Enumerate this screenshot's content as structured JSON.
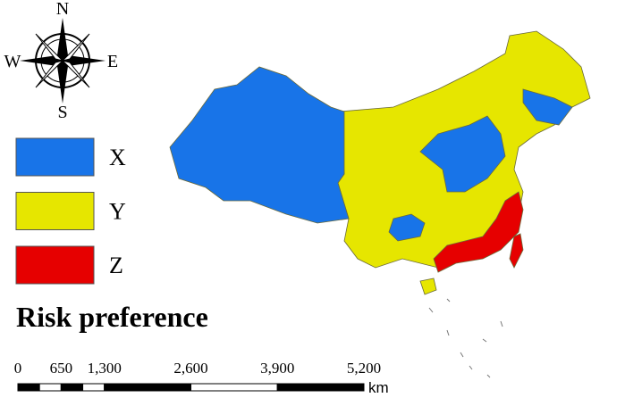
{
  "compass": {
    "north": "N",
    "south": "S",
    "east": "E",
    "west": "W"
  },
  "legend": [
    {
      "label": "X",
      "color": "#1874e8"
    },
    {
      "label": "Y",
      "color": "#e6e600"
    },
    {
      "label": "Z",
      "color": "#e60000"
    }
  ],
  "title": "Risk preference",
  "scale_bar": {
    "labels": [
      0,
      650,
      {
        "value": 1300,
        "label": "1,300"
      },
      {
        "value": 2600,
        "label": "2,600"
      },
      {
        "value": 3900,
        "label": "3,900"
      },
      {
        "value": 5200,
        "label": "5,200"
      }
    ],
    "unit": "km"
  }
}
